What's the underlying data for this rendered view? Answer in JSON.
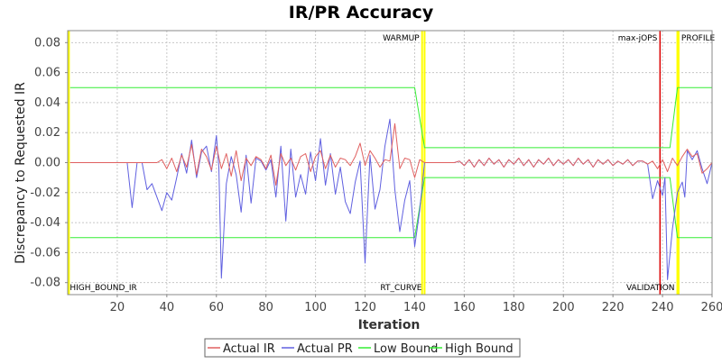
{
  "chart_data": {
    "type": "line",
    "title": "IR/PR Accuracy",
    "xlabel": "Iteration",
    "ylabel": "Discrepancy to Requested IR",
    "xlim": [
      0,
      260
    ],
    "ylim": [
      -0.088,
      0.088
    ],
    "x_ticks": [
      20,
      40,
      60,
      80,
      100,
      120,
      140,
      160,
      180,
      200,
      220,
      240,
      260
    ],
    "y_ticks": [
      -0.08,
      -0.06,
      -0.04,
      -0.02,
      0.0,
      0.02,
      0.04,
      0.06,
      0.08
    ],
    "y_tick_labels": [
      "-0.08",
      "-0.06",
      "-0.04",
      "-0.02",
      "0.00",
      "0.02",
      "0.04",
      "0.06",
      "0.08"
    ],
    "grid": true,
    "legend_position": "bottom",
    "markers": [
      {
        "label": "WARMUP",
        "x": 143,
        "color": "#ffff00",
        "label_pos": "top-left"
      },
      {
        "label": "RT_CURVE",
        "x": 144,
        "color": "#ffff00",
        "label_pos": "bottom-left"
      },
      {
        "label": "max-jOPS",
        "x": 239,
        "color": "#dd0000",
        "label_pos": "top-left"
      },
      {
        "label": "VALIDATION",
        "x": 246,
        "color": "#ffff00",
        "label_pos": "bottom-left"
      },
      {
        "label": "PROFILE",
        "x": 246.5,
        "color": "#ffff00",
        "label_pos": "top-right"
      },
      {
        "label": "HIGH_BOUND_IR",
        "x": 0.5,
        "color": "#ffff00",
        "label_pos": "bottom-right"
      }
    ],
    "series": [
      {
        "name": "Actual IR",
        "color": "#e06060",
        "points": [
          [
            1,
            0
          ],
          [
            10,
            0
          ],
          [
            20,
            0
          ],
          [
            30,
            0
          ],
          [
            36,
            0
          ],
          [
            38,
            0.002
          ],
          [
            40,
            -0.004
          ],
          [
            42,
            0.003
          ],
          [
            44,
            -0.006
          ],
          [
            46,
            0.005
          ],
          [
            48,
            -0.003
          ],
          [
            50,
            0.012
          ],
          [
            52,
            -0.008
          ],
          [
            54,
            0.009
          ],
          [
            56,
            0.004
          ],
          [
            58,
            -0.005
          ],
          [
            60,
            0.011
          ],
          [
            62,
            -0.004
          ],
          [
            64,
            0.006
          ],
          [
            66,
            -0.009
          ],
          [
            68,
            0.008
          ],
          [
            70,
            -0.012
          ],
          [
            72,
            0.003
          ],
          [
            74,
            -0.002
          ],
          [
            76,
            0.004
          ],
          [
            78,
            0.002
          ],
          [
            80,
            -0.004
          ],
          [
            82,
            0.005
          ],
          [
            84,
            -0.015
          ],
          [
            86,
            0.006
          ],
          [
            88,
            -0.002
          ],
          [
            90,
            0.003
          ],
          [
            92,
            -0.005
          ],
          [
            94,
            0.004
          ],
          [
            96,
            0.006
          ],
          [
            98,
            -0.006
          ],
          [
            100,
            0.004
          ],
          [
            102,
            0.008
          ],
          [
            104,
            -0.004
          ],
          [
            106,
            0.005
          ],
          [
            108,
            -0.003
          ],
          [
            110,
            0.003
          ],
          [
            112,
            0.002
          ],
          [
            114,
            -0.002
          ],
          [
            116,
            0.004
          ],
          [
            118,
            0.013
          ],
          [
            120,
            -0.002
          ],
          [
            122,
            0.008
          ],
          [
            124,
            0.003
          ],
          [
            126,
            -0.003
          ],
          [
            128,
            0.002
          ],
          [
            130,
            0.001
          ],
          [
            132,
            0.026
          ],
          [
            134,
            -0.004
          ],
          [
            136,
            0.003
          ],
          [
            138,
            0.002
          ],
          [
            140,
            -0.01
          ],
          [
            142,
            0.002
          ],
          [
            144,
            0
          ],
          [
            150,
            0
          ],
          [
            156,
            0
          ],
          [
            158,
            0.001
          ],
          [
            160,
            -0.002
          ],
          [
            162,
            0.002
          ],
          [
            164,
            -0.003
          ],
          [
            166,
            0.002
          ],
          [
            168,
            -0.002
          ],
          [
            170,
            0.003
          ],
          [
            172,
            -0.001
          ],
          [
            174,
            0.002
          ],
          [
            176,
            -0.003
          ],
          [
            178,
            0.002
          ],
          [
            180,
            -0.001
          ],
          [
            182,
            0.003
          ],
          [
            184,
            -0.002
          ],
          [
            186,
            0.002
          ],
          [
            188,
            -0.003
          ],
          [
            190,
            0.002
          ],
          [
            192,
            -0.001
          ],
          [
            194,
            0.003
          ],
          [
            196,
            -0.002
          ],
          [
            198,
            0.002
          ],
          [
            200,
            -0.001
          ],
          [
            202,
            0.002
          ],
          [
            204,
            -0.002
          ],
          [
            206,
            0.003
          ],
          [
            208,
            -0.001
          ],
          [
            210,
            0.002
          ],
          [
            212,
            -0.003
          ],
          [
            214,
            0.002
          ],
          [
            216,
            -0.001
          ],
          [
            218,
            0.002
          ],
          [
            220,
            -0.002
          ],
          [
            222,
            0.001
          ],
          [
            224,
            -0.001
          ],
          [
            226,
            0.002
          ],
          [
            228,
            -0.002
          ],
          [
            230,
            0.001
          ],
          [
            232,
            0.001
          ],
          [
            234,
            -0.001
          ],
          [
            236,
            0.001
          ],
          [
            238,
            -0.004
          ],
          [
            240,
            0.002
          ],
          [
            242,
            -0.006
          ],
          [
            244,
            0.003
          ],
          [
            246,
            -0.002
          ],
          [
            248,
            0.004
          ],
          [
            250,
            0.009
          ],
          [
            252,
            0.004
          ],
          [
            254,
            0.006
          ],
          [
            256,
            -0.007
          ],
          [
            258,
            -0.004
          ],
          [
            260,
            0
          ]
        ]
      },
      {
        "name": "Actual PR",
        "color": "#6060e0",
        "points": [
          [
            1,
            0
          ],
          [
            10,
            0
          ],
          [
            20,
            0
          ],
          [
            24,
            0
          ],
          [
            26,
            -0.03
          ],
          [
            28,
            0
          ],
          [
            30,
            0
          ],
          [
            32,
            -0.018
          ],
          [
            34,
            -0.014
          ],
          [
            36,
            -0.023
          ],
          [
            38,
            -0.032
          ],
          [
            40,
            -0.02
          ],
          [
            42,
            -0.025
          ],
          [
            44,
            -0.01
          ],
          [
            46,
            0.006
          ],
          [
            48,
            -0.007
          ],
          [
            50,
            0.015
          ],
          [
            52,
            -0.01
          ],
          [
            54,
            0.007
          ],
          [
            56,
            0.011
          ],
          [
            58,
            -0.006
          ],
          [
            60,
            0.018
          ],
          [
            61,
            -0.003
          ],
          [
            62,
            -0.077
          ],
          [
            64,
            -0.014
          ],
          [
            66,
            0.004
          ],
          [
            68,
            -0.008
          ],
          [
            70,
            -0.033
          ],
          [
            72,
            0.005
          ],
          [
            74,
            -0.027
          ],
          [
            76,
            0.003
          ],
          [
            78,
            0.001
          ],
          [
            80,
            -0.005
          ],
          [
            82,
            0.002
          ],
          [
            84,
            -0.023
          ],
          [
            86,
            0.011
          ],
          [
            88,
            -0.039
          ],
          [
            90,
            0.009
          ],
          [
            92,
            -0.023
          ],
          [
            94,
            -0.008
          ],
          [
            96,
            -0.021
          ],
          [
            98,
            0.007
          ],
          [
            100,
            -0.012
          ],
          [
            102,
            0.016
          ],
          [
            104,
            -0.015
          ],
          [
            106,
            0.006
          ],
          [
            108,
            -0.021
          ],
          [
            110,
            -0.003
          ],
          [
            112,
            -0.026
          ],
          [
            114,
            -0.034
          ],
          [
            116,
            -0.013
          ],
          [
            118,
            0.001
          ],
          [
            120,
            -0.067
          ],
          [
            122,
            0.005
          ],
          [
            124,
            -0.031
          ],
          [
            126,
            -0.018
          ],
          [
            128,
            0.011
          ],
          [
            130,
            0.029
          ],
          [
            132,
            -0.018
          ],
          [
            134,
            -0.046
          ],
          [
            136,
            -0.025
          ],
          [
            138,
            -0.012
          ],
          [
            140,
            -0.056
          ],
          [
            142,
            -0.032
          ],
          [
            144,
            0
          ],
          [
            150,
            0
          ],
          [
            156,
            0
          ],
          [
            158,
            0.001
          ],
          [
            160,
            -0.002
          ],
          [
            162,
            0.002
          ],
          [
            164,
            -0.003
          ],
          [
            166,
            0.002
          ],
          [
            168,
            -0.002
          ],
          [
            170,
            0.003
          ],
          [
            172,
            -0.001
          ],
          [
            174,
            0.002
          ],
          [
            176,
            -0.003
          ],
          [
            178,
            0.002
          ],
          [
            180,
            -0.001
          ],
          [
            182,
            0.003
          ],
          [
            184,
            -0.002
          ],
          [
            186,
            0.002
          ],
          [
            188,
            -0.003
          ],
          [
            190,
            0.002
          ],
          [
            192,
            -0.001
          ],
          [
            194,
            0.003
          ],
          [
            196,
            -0.002
          ],
          [
            198,
            0.002
          ],
          [
            200,
            -0.001
          ],
          [
            202,
            0.002
          ],
          [
            204,
            -0.002
          ],
          [
            206,
            0.003
          ],
          [
            208,
            -0.001
          ],
          [
            210,
            0.002
          ],
          [
            212,
            -0.003
          ],
          [
            214,
            0.002
          ],
          [
            216,
            -0.001
          ],
          [
            218,
            0.002
          ],
          [
            220,
            -0.002
          ],
          [
            222,
            0.001
          ],
          [
            224,
            -0.001
          ],
          [
            226,
            0.002
          ],
          [
            228,
            -0.002
          ],
          [
            230,
            0.001
          ],
          [
            232,
            0.001
          ],
          [
            234,
            -0.001
          ],
          [
            236,
            -0.024
          ],
          [
            238,
            -0.012
          ],
          [
            240,
            -0.022
          ],
          [
            241,
            -0.01
          ],
          [
            242,
            -0.078
          ],
          [
            244,
            -0.044
          ],
          [
            246,
            -0.02
          ],
          [
            248,
            -0.013
          ],
          [
            249,
            -0.023
          ],
          [
            250,
            0.008
          ],
          [
            252,
            0.002
          ],
          [
            254,
            0.008
          ],
          [
            256,
            -0.004
          ],
          [
            258,
            -0.014
          ],
          [
            260,
            0
          ]
        ]
      },
      {
        "name": "Low Bound",
        "color": "#33ee33",
        "points": [
          [
            1,
            -0.05
          ],
          [
            140,
            -0.05
          ],
          [
            144,
            -0.01
          ],
          [
            243,
            -0.01
          ],
          [
            246,
            -0.05
          ],
          [
            260,
            -0.05
          ]
        ]
      },
      {
        "name": "High Bound",
        "color": "#33ee33",
        "points": [
          [
            1,
            0.05
          ],
          [
            140,
            0.05
          ],
          [
            144,
            0.01
          ],
          [
            243,
            0.01
          ],
          [
            246,
            0.05
          ],
          [
            260,
            0.05
          ]
        ]
      }
    ]
  }
}
